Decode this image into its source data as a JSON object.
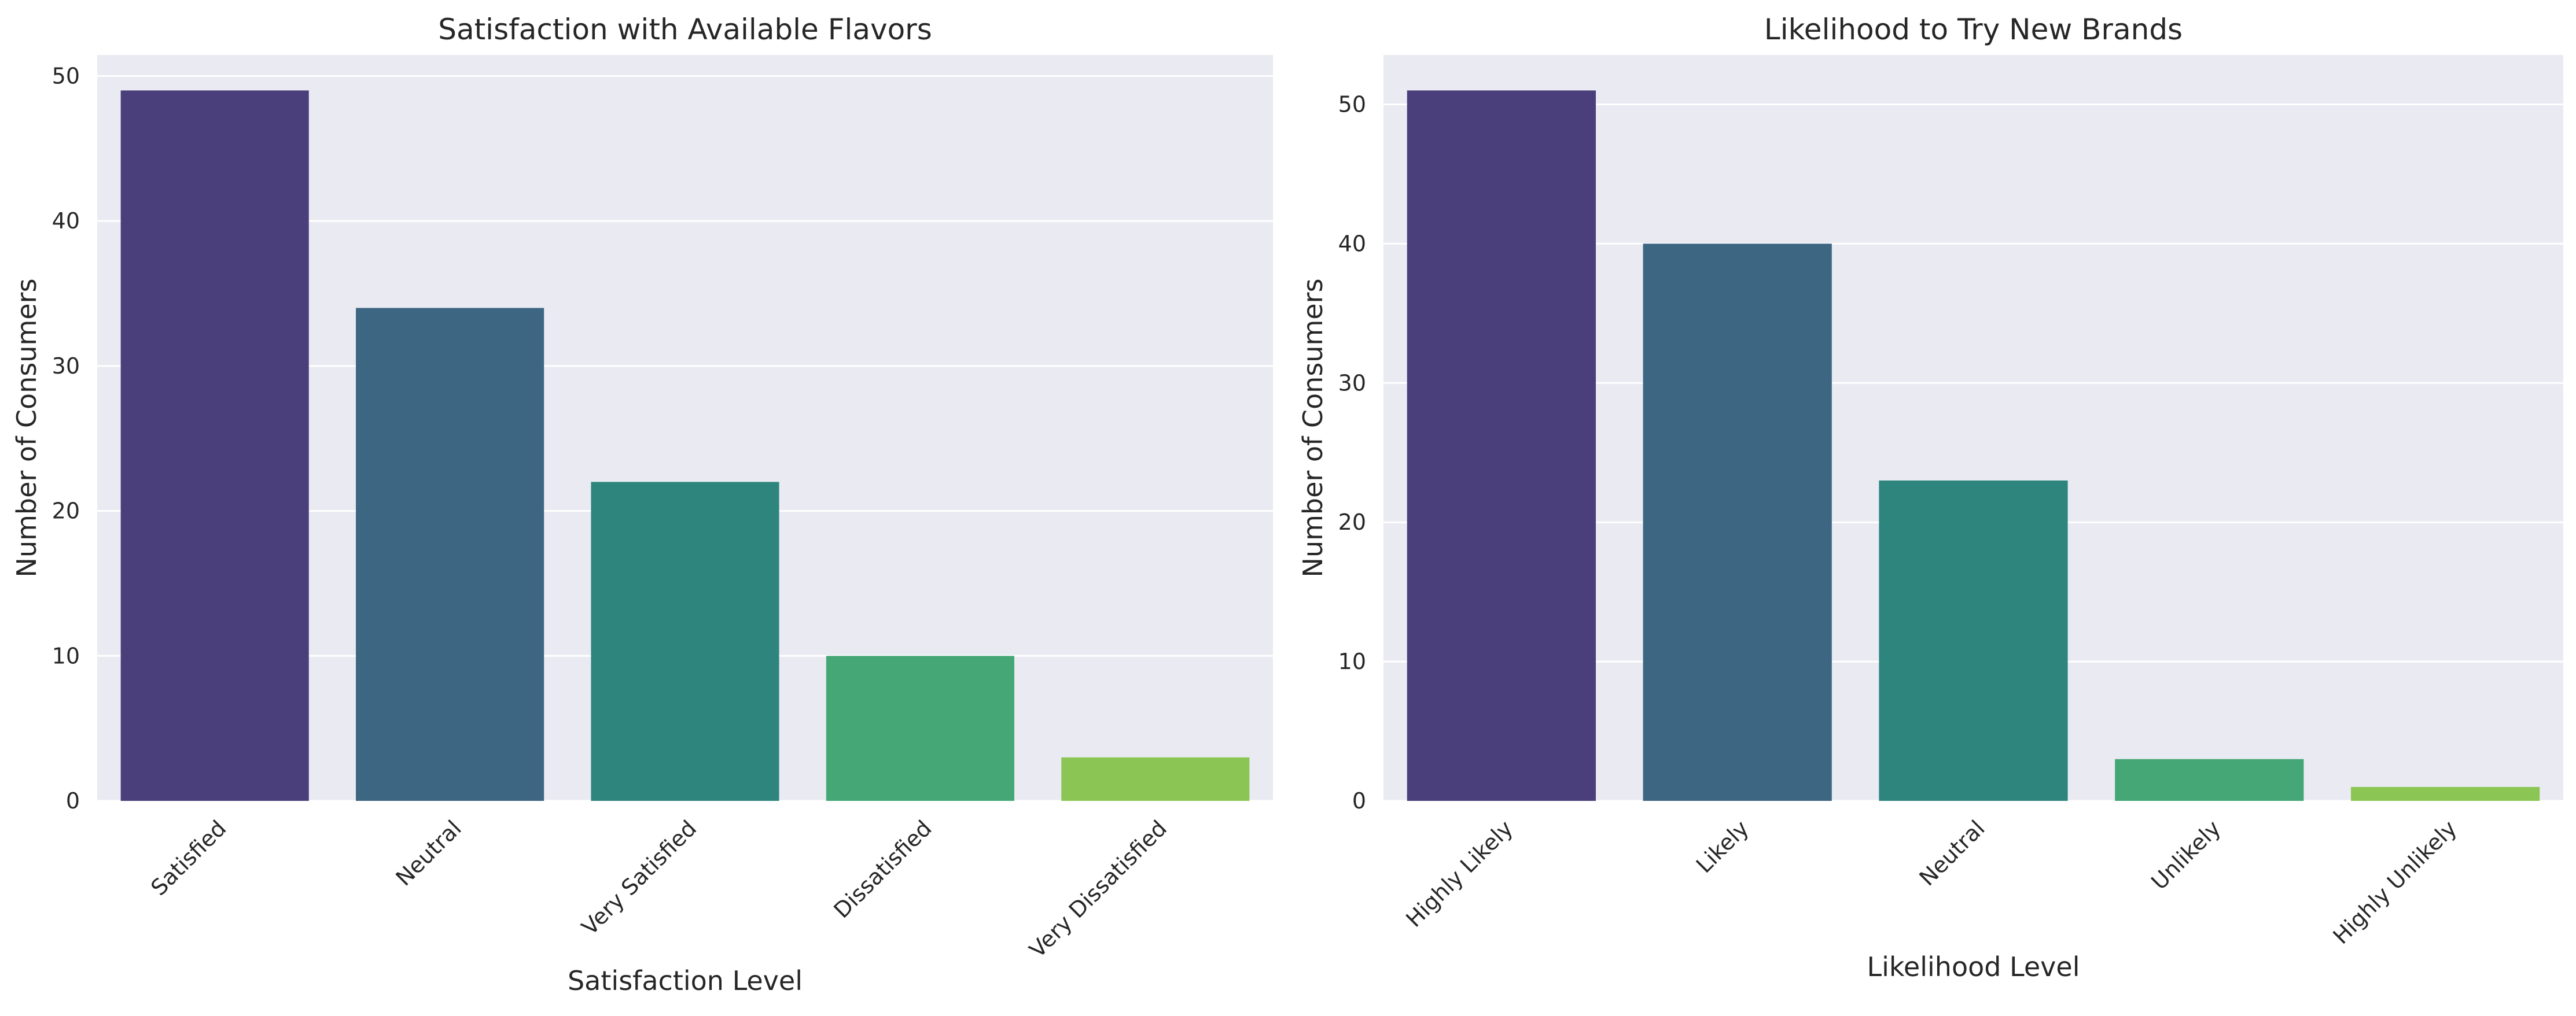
{
  "chart_data": [
    {
      "type": "bar",
      "title": "Satisfaction with Available Flavors",
      "xlabel": "Satisfaction Level",
      "ylabel": "Number of Consumers",
      "categories": [
        "Satisfied",
        "Neutral",
        "Very Satisfied",
        "Dissatisfied",
        "Very Dissatisfied"
      ],
      "values": [
        49,
        34,
        22,
        10,
        3
      ],
      "colors": [
        "#4a3f7a",
        "#3d6683",
        "#2e857e",
        "#45a776",
        "#8bc654"
      ],
      "ylim": [
        0,
        51.45
      ],
      "yticks": [
        "0",
        "10",
        "20",
        "30",
        "40",
        "50"
      ],
      "grid": true,
      "legend": "none"
    },
    {
      "type": "bar",
      "title": "Likelihood to Try New Brands",
      "xlabel": "Likelihood Level",
      "ylabel": "Number of Consumers",
      "categories": [
        "Highly Likely",
        "Likely",
        "Neutral",
        "Unlikely",
        "Highly Unlikely"
      ],
      "values": [
        51,
        40,
        23,
        3,
        1
      ],
      "colors": [
        "#4a3f7a",
        "#3d6683",
        "#2e857e",
        "#45a776",
        "#8bc654"
      ],
      "ylim": [
        0,
        53.55
      ],
      "yticks": [
        "0",
        "10",
        "20",
        "30",
        "40",
        "50"
      ],
      "grid": true,
      "legend": "none"
    }
  ]
}
